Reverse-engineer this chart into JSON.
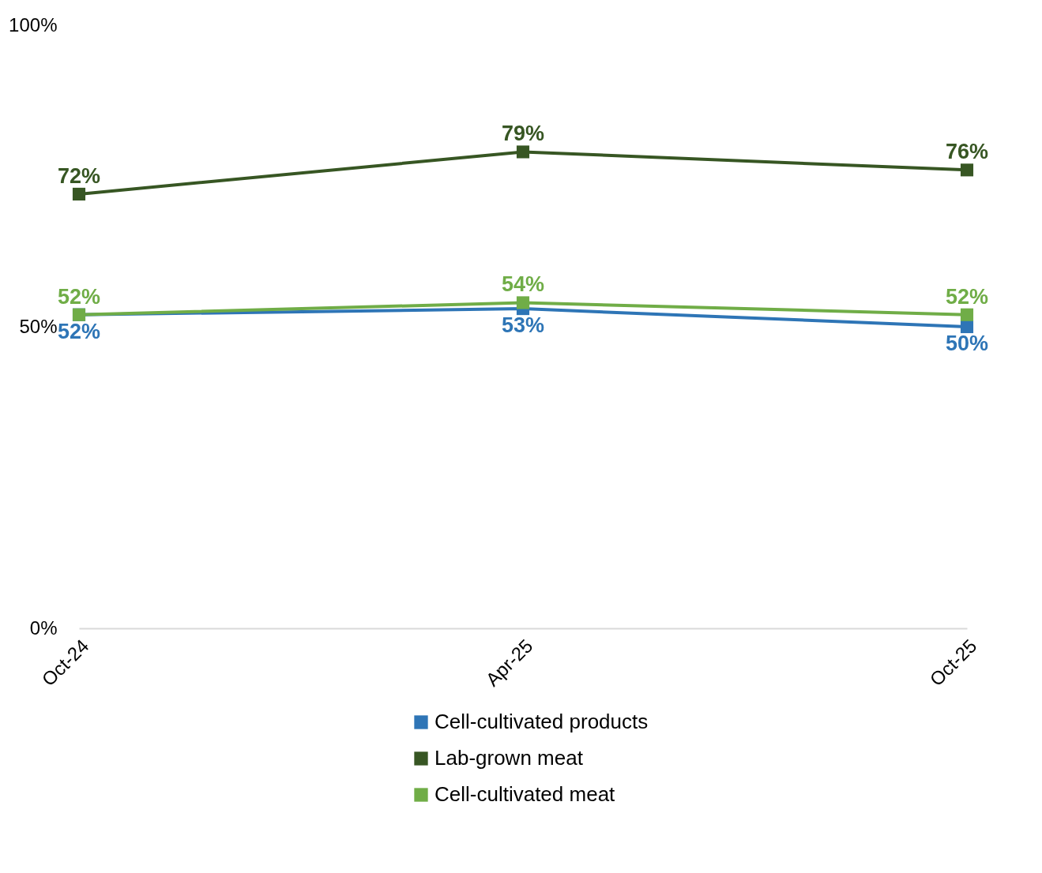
{
  "chart_data": {
    "type": "line",
    "categories": [
      "Oct-24",
      "Apr-25",
      "Oct-25"
    ],
    "series": [
      {
        "name": "Cell-cultivated products",
        "color": "#2e75b6",
        "values": [
          52,
          53,
          50
        ],
        "value_labels": [
          "52%",
          "53%",
          "50%"
        ]
      },
      {
        "name": "Lab-grown meat",
        "color": "#375623",
        "values": [
          72,
          79,
          76
        ],
        "value_labels": [
          "72%",
          "79%",
          "76%"
        ]
      },
      {
        "name": "Cell-cultivated meat",
        "color": "#70ad47",
        "values": [
          52,
          54,
          52
        ],
        "value_labels": [
          "52%",
          "54%",
          "52%"
        ]
      }
    ],
    "ylim": [
      0,
      100
    ],
    "yticks": [
      {
        "value": 0,
        "label": "0%"
      },
      {
        "value": 50,
        "label": "50%"
      },
      {
        "value": 100,
        "label": "100%"
      }
    ],
    "grid": false,
    "legend": "bottom",
    "marker": "square",
    "line_style": "solid"
  }
}
